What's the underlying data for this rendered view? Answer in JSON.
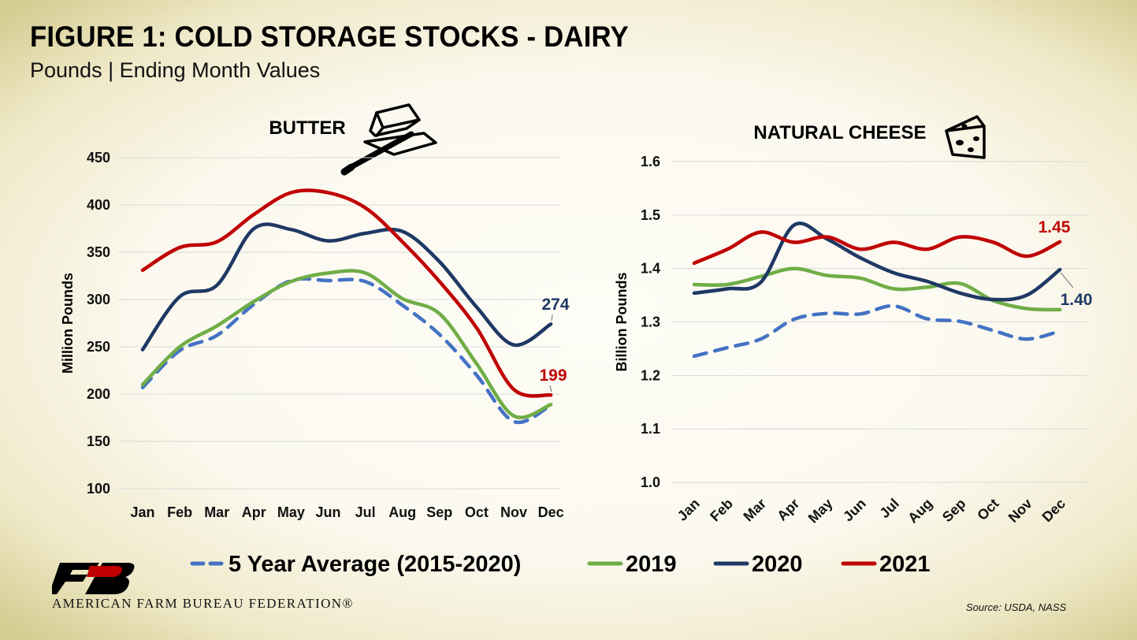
{
  "header": {
    "title": "FIGURE 1: COLD STORAGE STOCKS - DAIRY",
    "subtitle": "Pounds | Ending Month Values"
  },
  "footer": {
    "organization": "AMERICAN FARM BUREAU FEDERATION®",
    "source": "Source: USDA, NASS"
  },
  "colors": {
    "avg": "#4472c4",
    "y2019": "#70ad47",
    "y2020": "#1f3864",
    "y2021": "#c00000"
  },
  "icons": {
    "butter": "butter-dish-icon",
    "cheese": "cheese-wedge-icon",
    "logo": "fb-logo-icon"
  },
  "chart_data": [
    {
      "type": "line",
      "title": "BUTTER",
      "ylabel": "Million Pounds",
      "xlabel": "",
      "ylim": [
        100,
        450
      ],
      "yticks": [
        100,
        150,
        200,
        250,
        300,
        350,
        400,
        450
      ],
      "ytick_labels": [
        "100",
        "150",
        "200",
        "250",
        "300",
        "350",
        "400",
        "450"
      ],
      "categories": [
        "Jan",
        "Feb",
        "Mar",
        "Apr",
        "May",
        "Jun",
        "Jul",
        "Aug",
        "Sep",
        "Oct",
        "Nov",
        "Dec"
      ],
      "grid": true,
      "series": [
        {
          "name": "5 Year Average (2015-2020)",
          "color": "#4472c4",
          "dashed": true,
          "values": [
            207,
            246,
            262,
            295,
            320,
            320,
            319,
            294,
            263,
            220,
            171,
            188
          ]
        },
        {
          "name": "2019",
          "color": "#70ad47",
          "dashed": false,
          "values": [
            210,
            250,
            272,
            298,
            319,
            328,
            328,
            301,
            285,
            232,
            177,
            189
          ]
        },
        {
          "name": "2020",
          "color": "#1f3864",
          "dashed": false,
          "values": [
            247,
            303,
            315,
            375,
            374,
            362,
            370,
            372,
            340,
            292,
            252,
            274
          ]
        },
        {
          "name": "2021",
          "color": "#c00000",
          "dashed": false,
          "values": [
            331,
            355,
            361,
            390,
            413,
            413,
            397,
            361,
            319,
            270,
            205,
            199
          ]
        }
      ],
      "annotations": [
        {
          "text": "274",
          "series": "2020",
          "category": "Dec",
          "value": 274,
          "color": "#1f3864"
        },
        {
          "text": "199",
          "series": "2021",
          "category": "Dec",
          "value": 199,
          "color": "#c00000"
        }
      ]
    },
    {
      "type": "line",
      "title": "NATURAL CHEESE",
      "ylabel": "Billion Pounds",
      "xlabel": "",
      "ylim": [
        1.0,
        1.6
      ],
      "yticks": [
        1.0,
        1.1,
        1.2,
        1.3,
        1.4,
        1.5,
        1.6
      ],
      "ytick_labels": [
        "1.0",
        "1.1",
        "1.2",
        "1.3",
        "1.4",
        "1.5",
        "1.6"
      ],
      "categories": [
        "Jan",
        "Feb",
        "Mar",
        "Apr",
        "May",
        "Jun",
        "Jul",
        "Aug",
        "Sep",
        "Oct",
        "Nov",
        "Dec"
      ],
      "grid": true,
      "series": [
        {
          "name": "5 Year Average (2015-2020)",
          "color": "#4472c4",
          "dashed": true,
          "values": [
            1.236,
            1.252,
            1.268,
            1.305,
            1.316,
            1.315,
            1.33,
            1.306,
            1.301,
            1.284,
            1.268,
            1.283
          ]
        },
        {
          "name": "2019",
          "color": "#70ad47",
          "dashed": false,
          "values": [
            1.37,
            1.37,
            1.385,
            1.4,
            1.387,
            1.382,
            1.362,
            1.365,
            1.372,
            1.34,
            1.325,
            1.323
          ]
        },
        {
          "name": "2020",
          "color": "#1f3864",
          "dashed": false,
          "values": [
            1.354,
            1.362,
            1.374,
            1.481,
            1.455,
            1.42,
            1.392,
            1.376,
            1.354,
            1.342,
            1.35,
            1.398
          ]
        },
        {
          "name": "2021",
          "color": "#c00000",
          "dashed": false,
          "values": [
            1.41,
            1.436,
            1.468,
            1.449,
            1.459,
            1.436,
            1.449,
            1.436,
            1.459,
            1.449,
            1.423,
            1.45
          ]
        }
      ],
      "annotations": [
        {
          "text": "1.45",
          "series": "2021",
          "category": "Dec",
          "value": 1.45,
          "color": "#c00000"
        },
        {
          "text": "1.40",
          "series": "2020",
          "category": "Dec",
          "value": 1.398,
          "color": "#1f3864"
        }
      ]
    }
  ],
  "legend": {
    "placement": "bottom",
    "items": [
      {
        "label": "5 Year Average (2015-2020)",
        "color": "#4472c4",
        "dashed": true
      },
      {
        "label": "2019",
        "color": "#70ad47",
        "dashed": false
      },
      {
        "label": "2020",
        "color": "#1f3864",
        "dashed": false
      },
      {
        "label": "2021",
        "color": "#c00000",
        "dashed": false
      }
    ]
  }
}
